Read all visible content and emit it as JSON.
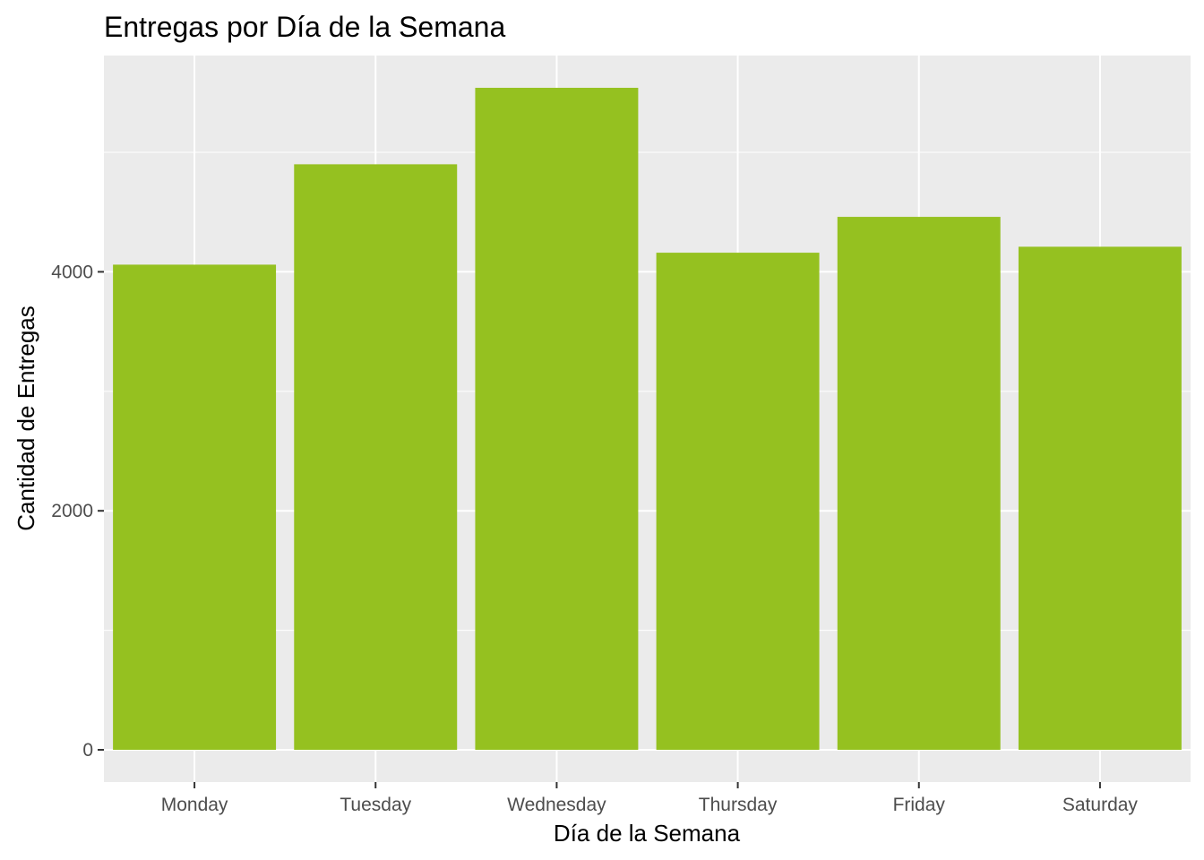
{
  "chart_data": {
    "type": "bar",
    "title": "Entregas por Día de la Semana",
    "xlabel": "Día de la Semana",
    "ylabel": "Cantidad de Entregas",
    "categories": [
      "Monday",
      "Tuesday",
      "Wednesday",
      "Thursday",
      "Friday",
      "Saturday"
    ],
    "values": [
      4060,
      4900,
      5540,
      4160,
      4460,
      4210
    ],
    "ylim": [
      -270,
      5810
    ],
    "yticks": [
      0,
      2000,
      4000
    ],
    "grid": true,
    "legend": "none",
    "colors": {
      "bar": "#95C120",
      "panel": "#EBEBEB",
      "grid": "#FFFFFF",
      "tick": "#333333"
    }
  }
}
